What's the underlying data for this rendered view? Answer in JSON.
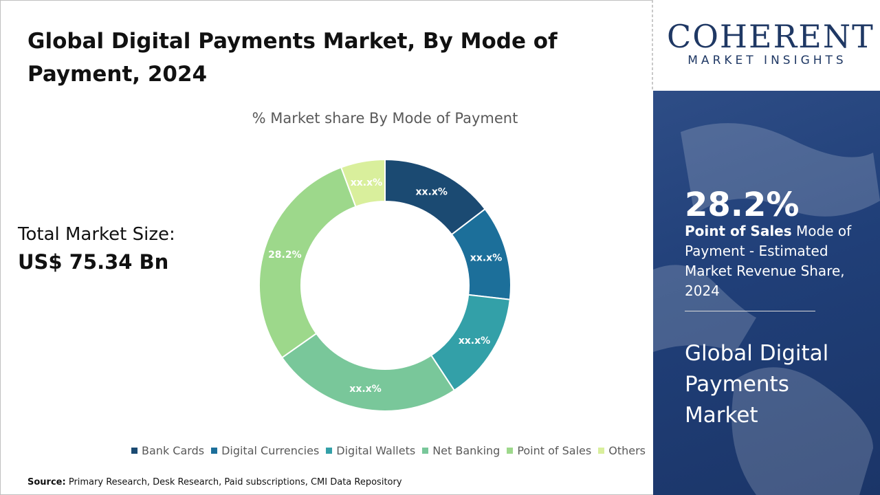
{
  "title": "Global Digital Payments Market, By Mode of Payment, 2024",
  "total": {
    "label": "Total Market Size:",
    "value": "US$ 75.34 Bn"
  },
  "source": {
    "label": "Source:",
    "text": "Primary Research, Desk Research, Paid subscriptions, CMI Data Repository"
  },
  "logo": {
    "main": "COHERENT",
    "sub": "MARKET INSIGHTS"
  },
  "side_panel": {
    "stat_value": "28.2%",
    "stat_highlight": "Point of Sales",
    "stat_rest": " Mode of Payment - Estimated Market Revenue Share, 2024",
    "title": "Global Digital Payments Market"
  },
  "chart_data": {
    "type": "pie",
    "subtitle": "% Market share By Mode of Payment",
    "donut": true,
    "legend_position": "bottom",
    "categories": [
      "Bank Cards",
      "Digital Currencies",
      "Digital Wallets",
      "Net Banking",
      "Point of Sales",
      "Others"
    ],
    "values": [
      14.2,
      11.8,
      13.5,
      23.8,
      28.2,
      5.5
    ],
    "labels": [
      "xx.x%",
      "xx.x%",
      "xx.x%",
      "xx.x%",
      "28.2%",
      "xx.x%"
    ],
    "colors": [
      "#1b4a72",
      "#1c6f9a",
      "#33a0a8",
      "#79c79a",
      "#9dd88b",
      "#d9ef9c"
    ],
    "label_colors": [
      "#ffffff",
      "#ffffff",
      "#ffffff",
      "#ffffff",
      "#ffffff",
      "#ffffff"
    ]
  }
}
